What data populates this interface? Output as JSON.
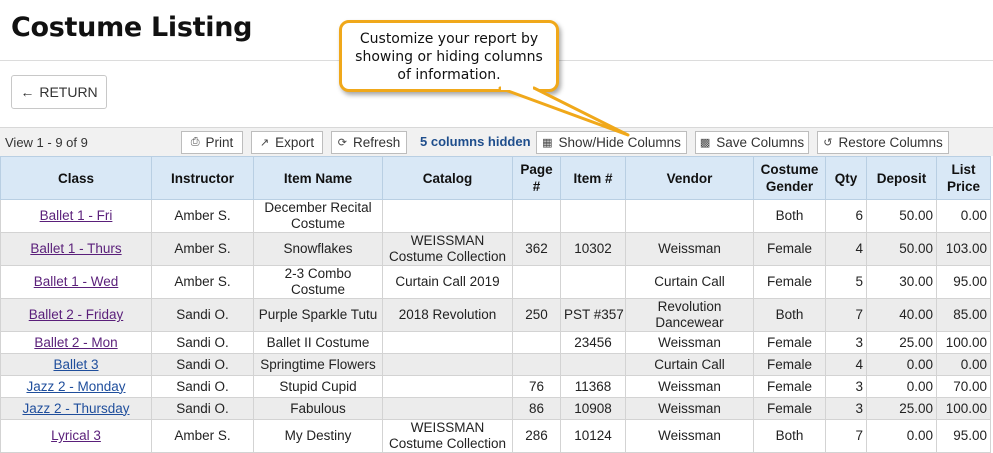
{
  "page": {
    "title": "Costume Listing"
  },
  "return_button": {
    "label": "RETURN",
    "icon": "arrow-left-icon"
  },
  "callout": {
    "text": "Customize your report by showing or hiding columns of information.",
    "border_color": "#f0a81a"
  },
  "toolbar": {
    "view_count": "View 1 - 9 of 9",
    "print_label": "Print",
    "export_label": "Export",
    "refresh_label": "Refresh",
    "hidden_note": "5 columns hidden",
    "show_hide_label": "Show/Hide Columns",
    "save_label": "Save Columns",
    "restore_label": "Restore Columns"
  },
  "table": {
    "headers": {
      "class": "Class",
      "instructor": "Instructor",
      "item_name": "Item Name",
      "catalog": "Catalog",
      "page": "Page #",
      "item_no": "Item #",
      "vendor": "Vendor",
      "gender": "Costume Gender",
      "qty": "Qty",
      "deposit": "Deposit",
      "list_price": "List Price"
    },
    "rows": [
      {
        "class": "Ballet 1 - Fri",
        "instructor": "Amber S.",
        "item_name": "December Recital Costume",
        "catalog": "",
        "page": "",
        "item_no": "",
        "vendor": "",
        "gender": "Both",
        "qty": "6",
        "deposit": "50.00",
        "list_price": "0.00"
      },
      {
        "class": "Ballet 1 - Thurs",
        "instructor": "Amber S.",
        "item_name": "Snowflakes",
        "catalog": "WEISSMAN Costume Collection",
        "page": "362",
        "item_no": "10302",
        "vendor": "Weissman",
        "gender": "Female",
        "qty": "4",
        "deposit": "50.00",
        "list_price": "103.00"
      },
      {
        "class": "Ballet 1 - Wed",
        "instructor": "Amber S.",
        "item_name": "2-3 Combo Costume",
        "catalog": "Curtain Call 2019",
        "page": "",
        "item_no": "",
        "vendor": "Curtain Call",
        "gender": "Female",
        "qty": "5",
        "deposit": "30.00",
        "list_price": "95.00"
      },
      {
        "class": "Ballet 2 - Friday",
        "instructor": "Sandi O.",
        "item_name": "Purple Sparkle Tutu",
        "catalog": "2018 Revolution",
        "page": "250",
        "item_no": "PST #357",
        "vendor": "Revolution Dancewear",
        "gender": "Both",
        "qty": "7",
        "deposit": "40.00",
        "list_price": "85.00"
      },
      {
        "class": "Ballet 2 - Mon",
        "instructor": "Sandi O.",
        "item_name": "Ballet II Costume",
        "catalog": "",
        "page": "",
        "item_no": "23456",
        "vendor": "Weissman",
        "gender": "Female",
        "qty": "3",
        "deposit": "25.00",
        "list_price": "100.00"
      },
      {
        "class": "Ballet 3",
        "instructor": "Sandi O.",
        "item_name": "Springtime Flowers",
        "catalog": "",
        "page": "",
        "item_no": "",
        "vendor": "Curtain Call",
        "gender": "Female",
        "qty": "4",
        "deposit": "0.00",
        "list_price": "0.00"
      },
      {
        "class": "Jazz 2 - Monday",
        "instructor": "Sandi O.",
        "item_name": "Stupid Cupid",
        "catalog": "",
        "page": "76",
        "item_no": "11368",
        "vendor": "Weissman",
        "gender": "Female",
        "qty": "3",
        "deposit": "0.00",
        "list_price": "70.00"
      },
      {
        "class": "Jazz 2 - Thursday",
        "instructor": "Sandi O.",
        "item_name": "Fabulous",
        "catalog": "",
        "page": "86",
        "item_no": "10908",
        "vendor": "Weissman",
        "gender": "Female",
        "qty": "3",
        "deposit": "25.00",
        "list_price": "100.00"
      },
      {
        "class": "Lyrical 3",
        "instructor": "Amber S.",
        "item_name": "My Destiny",
        "catalog": "WEISSMAN Costume Collection",
        "page": "286",
        "item_no": "10124",
        "vendor": "Weissman",
        "gender": "Both",
        "qty": "7",
        "deposit": "0.00",
        "list_price": "95.00"
      }
    ]
  }
}
